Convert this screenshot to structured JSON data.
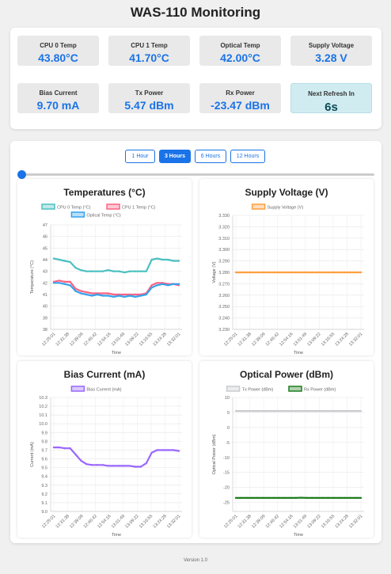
{
  "page_title": "WAS-110 Monitoring",
  "metrics": [
    {
      "label": "CPU 0 Temp",
      "value": "43.80°C"
    },
    {
      "label": "CPU 1 Temp",
      "value": "41.70°C"
    },
    {
      "label": "Optical Temp",
      "value": "42.00°C"
    },
    {
      "label": "Supply Voltage",
      "value": "3.28 V"
    },
    {
      "label": "Bias Current",
      "value": "9.70 mA"
    },
    {
      "label": "Tx Power",
      "value": "5.47 dBm"
    },
    {
      "label": "Rx Power",
      "value": "-23.47 dBm"
    }
  ],
  "refresh": {
    "label": "Next Refresh In",
    "value": "6s"
  },
  "ranges": [
    "1 Hour",
    "3 Hours",
    "6 Hours",
    "12 Hours"
  ],
  "active_range": "3 Hours",
  "slider": {
    "value": 0
  },
  "time_ticks": [
    "12:25:01",
    "12:31:38",
    "12:39:09",
    "12:46:42",
    "12:54:16",
    "13:01:49",
    "13:09:22",
    "13:16:55",
    "13:24:28",
    "13:32:01"
  ],
  "chart_data": [
    {
      "type": "line",
      "title": "Temperatures (°C)",
      "xlabel": "Time",
      "ylabel": "Temperature (°C)",
      "ylim": [
        38,
        47
      ],
      "yticks": [
        "47",
        "46",
        "45",
        "44",
        "43",
        "42",
        "41",
        "40",
        "39",
        "38"
      ],
      "legend": "top",
      "series": [
        {
          "name": "CPU 0 Temp (°C)",
          "color": "#4bc0c0",
          "values": [
            44.1,
            44.0,
            43.9,
            43.8,
            43.3,
            43.1,
            43.0,
            43.0,
            43.0,
            43.0,
            43.1,
            43.0,
            43.0,
            42.9,
            43.0,
            43.0,
            43.0,
            43.0,
            44.0,
            44.1,
            44.0,
            44.0,
            43.9,
            43.9
          ]
        },
        {
          "name": "CPU 1 Temp (°C)",
          "color": "#ff6384",
          "values": [
            42.1,
            42.2,
            42.1,
            42.1,
            41.5,
            41.3,
            41.2,
            41.1,
            41.1,
            41.1,
            41.1,
            41.0,
            41.0,
            41.0,
            41.0,
            41.0,
            41.0,
            41.1,
            41.8,
            42.0,
            42.0,
            41.9,
            41.9,
            41.8
          ]
        },
        {
          "name": "Optical Temp (°C)",
          "color": "#36a2eb",
          "values": [
            42.0,
            42.0,
            41.9,
            41.8,
            41.3,
            41.1,
            41.0,
            40.9,
            41.0,
            40.9,
            40.9,
            40.8,
            40.9,
            40.8,
            40.9,
            40.8,
            40.9,
            41.0,
            41.6,
            41.8,
            41.9,
            41.8,
            41.9,
            41.9
          ]
        }
      ]
    },
    {
      "type": "line",
      "title": "Supply Voltage (V)",
      "xlabel": "Time",
      "ylabel": "Voltage (V)",
      "ylim": [
        3.23,
        3.33
      ],
      "yticks": [
        "3.330",
        "3.320",
        "3.310",
        "3.300",
        "3.290",
        "3.280",
        "3.270",
        "3.260",
        "3.250",
        "3.240",
        "3.230"
      ],
      "legend": "top",
      "series": [
        {
          "name": "Supply Voltage (V)",
          "color": "#ff9f40",
          "values": [
            3.28,
            3.28,
            3.28,
            3.28,
            3.28,
            3.28,
            3.28,
            3.28,
            3.28,
            3.28,
            3.28,
            3.28,
            3.28,
            3.28,
            3.28,
            3.28,
            3.28,
            3.28,
            3.28,
            3.28,
            3.28,
            3.28,
            3.28,
            3.28
          ]
        }
      ]
    },
    {
      "type": "line",
      "title": "Bias Current (mA)",
      "xlabel": "Time",
      "ylabel": "Current (mA)",
      "ylim": [
        9.0,
        10.3
      ],
      "yticks": [
        "10.3",
        "10.2",
        "10.1",
        "10.0",
        "9.9",
        "9.8",
        "9.7",
        "9.6",
        "9.5",
        "9.4",
        "9.3",
        "9.2",
        "9.1",
        "9.0"
      ],
      "legend": "top",
      "series": [
        {
          "name": "Bias Current (mA)",
          "color": "#9966ff",
          "values": [
            9.73,
            9.73,
            9.72,
            9.72,
            9.65,
            9.58,
            9.54,
            9.53,
            9.53,
            9.53,
            9.52,
            9.52,
            9.52,
            9.52,
            9.52,
            9.51,
            9.51,
            9.55,
            9.67,
            9.7,
            9.7,
            9.7,
            9.7,
            9.69
          ]
        }
      ]
    },
    {
      "type": "line",
      "title": "Optical Power (dBm)",
      "xlabel": "Time",
      "ylabel": "Optical Power (dBm)",
      "ylim": [
        -28,
        10
      ],
      "yticks": [
        "10",
        "5",
        "0",
        "-5",
        "-10",
        "-15",
        "-20",
        "-25"
      ],
      "yticks_values": [
        10,
        5,
        0,
        -5,
        -10,
        -15,
        -20,
        -25
      ],
      "legend": "top",
      "series": [
        {
          "name": "Tx Power (dBm)",
          "color": "#c9cbcf",
          "values": [
            5.5,
            5.5,
            5.5,
            5.5,
            5.5,
            5.5,
            5.5,
            5.5,
            5.5,
            5.5,
            5.5,
            5.5,
            5.5,
            5.5,
            5.5,
            5.5,
            5.5,
            5.5,
            5.5,
            5.5,
            5.5,
            5.5,
            5.5,
            5.5
          ]
        },
        {
          "name": "Rx Power (dBm)",
          "color": "#1e7d1e",
          "values": [
            -23.5,
            -23.5,
            -23.5,
            -23.5,
            -23.5,
            -23.5,
            -23.5,
            -23.5,
            -23.5,
            -23.5,
            -23.5,
            -23.5,
            -23.4,
            -23.5,
            -23.5,
            -23.5,
            -23.5,
            -23.5,
            -23.5,
            -23.5,
            -23.5,
            -23.5,
            -23.5,
            -23.5
          ]
        }
      ]
    }
  ],
  "version": "Version 1.0"
}
